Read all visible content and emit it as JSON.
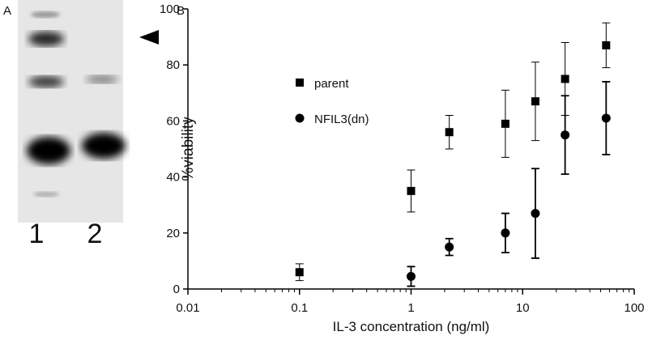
{
  "panel_a": {
    "label": "A",
    "lanes": [
      "1",
      "2"
    ]
  },
  "chart_data": {
    "type": "scatter",
    "panel_label": "B",
    "x_label": "IL-3 concentration (ng/ml)",
    "y_label": "%viability",
    "xlog": true,
    "xlim": [
      0.01,
      100
    ],
    "xticks": [
      0.01,
      0.1,
      1,
      10,
      100
    ],
    "ylim": [
      0,
      100
    ],
    "yticks": [
      0,
      20,
      40,
      60,
      80,
      100
    ],
    "series": [
      {
        "name": "parent",
        "color": "#000000",
        "marker": "square",
        "x": [
          0.1,
          1,
          2.2,
          7,
          13,
          24,
          56
        ],
        "values": [
          6,
          35,
          56,
          59,
          67,
          75,
          87
        ],
        "errors": [
          3,
          7.5,
          6,
          12,
          14,
          13,
          8
        ]
      },
      {
        "name": "NFIL3(dn)",
        "color": "#000000",
        "marker": "circle",
        "x": [
          1,
          2.2,
          7,
          13,
          24,
          56
        ],
        "values": [
          4.5,
          15,
          20,
          27,
          55,
          61
        ],
        "errors": [
          3.5,
          3,
          7,
          16,
          14,
          13
        ]
      }
    ]
  }
}
